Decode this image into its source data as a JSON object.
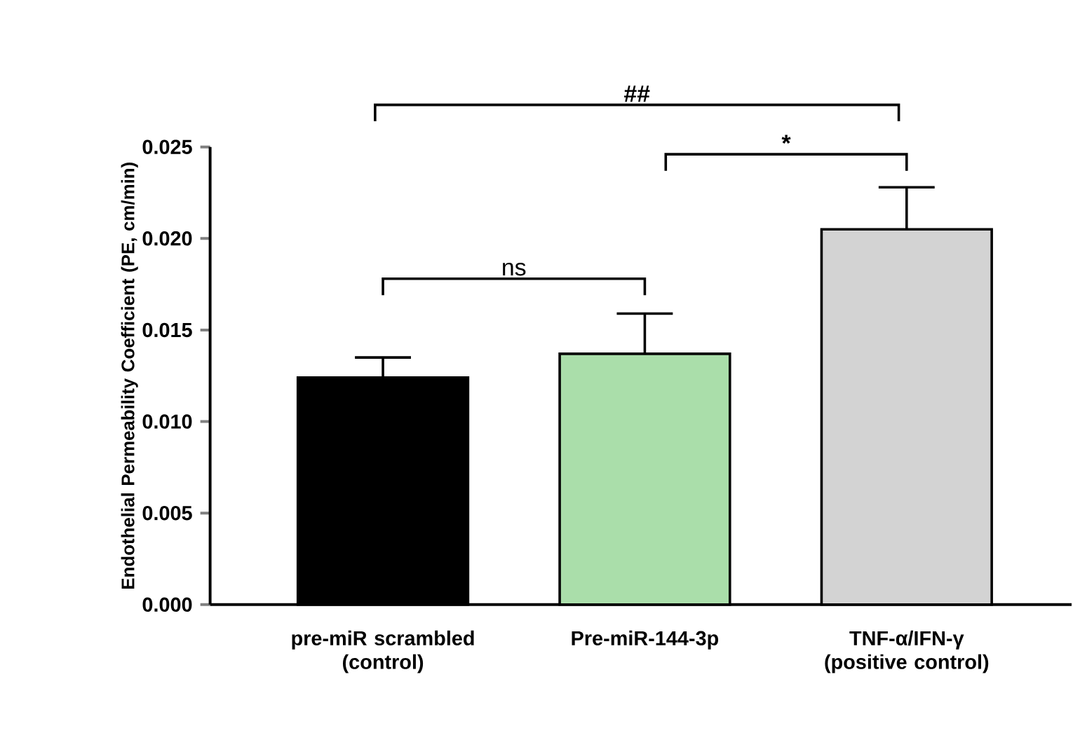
{
  "chart_data": {
    "type": "bar",
    "ylabel": "Endothelial Permeability Coefficient (PE, cm/min)",
    "categories": [
      "pre-miR scrambled (control)",
      "Pre-miR-144-3p",
      "TNF-α/IFN-γ (positive control)"
    ],
    "values": [
      0.0124,
      0.0137,
      0.0205
    ],
    "errors": [
      0.0011,
      0.0022,
      0.0023
    ],
    "colors": [
      "#000000",
      "#aadeaa",
      "#d3d3d3"
    ],
    "ylim": [
      0,
      0.025
    ],
    "yticks": [
      {
        "value": 0,
        "label": "0.000"
      },
      {
        "value": 0.005,
        "label": "0.005"
      },
      {
        "value": 0.01,
        "label": "0.010"
      },
      {
        "value": 0.015,
        "label": "0.015"
      },
      {
        "value": 0.02,
        "label": "0.020"
      },
      {
        "value": 0.025,
        "label": "0.025"
      }
    ],
    "annotations": [
      "ns",
      "*",
      "##"
    ],
    "grid": false
  }
}
